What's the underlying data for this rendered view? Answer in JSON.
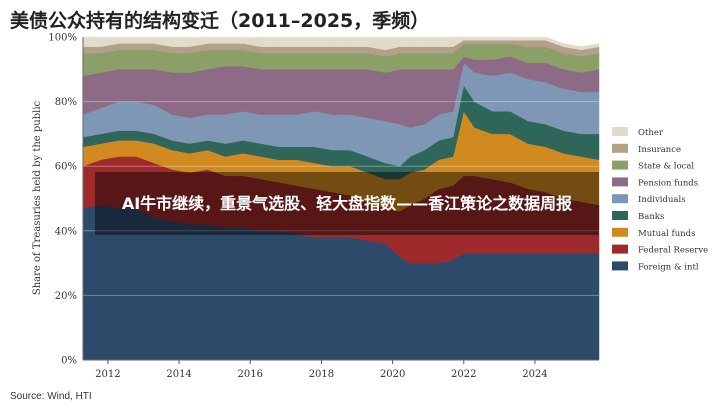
{
  "title": "美债公众持有的结构变迁（2011–2025，季频）",
  "source": "Source: Wind, HTI",
  "banner": "AI牛市继续，重景气选股、轻大盘指数——香江策论之数据周报",
  "chart_data": {
    "type": "area",
    "stacked": true,
    "ylabel": "Share of Treasuries held by the public",
    "ylim": [
      0,
      100
    ],
    "yticks": [
      "0%",
      "20%",
      "40%",
      "60%",
      "80%",
      "100%"
    ],
    "xlim": [
      2011.3,
      2025.8
    ],
    "xticks": [
      "2012",
      "2014",
      "2016",
      "2018",
      "2020",
      "2022",
      "2024"
    ],
    "legend_position": "right",
    "x": [
      2011.3,
      2011.8,
      2012.3,
      2012.8,
      2013.3,
      2013.8,
      2014.3,
      2014.8,
      2015.3,
      2015.8,
      2016.3,
      2016.8,
      2017.3,
      2017.8,
      2018.3,
      2018.8,
      2019.3,
      2019.8,
      2020.2,
      2020.5,
      2020.9,
      2021.3,
      2021.7,
      2022.0,
      2022.3,
      2022.8,
      2023.3,
      2023.8,
      2024.3,
      2024.8,
      2025.3,
      2025.8
    ],
    "series": [
      {
        "name": "Foreign & intl",
        "color": "#2e4a6b",
        "values": [
          47,
          48,
          47,
          47,
          44,
          43,
          42,
          42,
          41,
          41,
          40,
          40,
          39,
          38,
          38,
          38,
          37,
          36,
          32,
          30,
          30,
          30,
          31,
          33,
          33,
          33,
          33,
          33,
          33,
          33,
          33,
          33
        ]
      },
      {
        "name": "Federal Reserve",
        "color": "#9e2a2b",
        "values": [
          13,
          14,
          16,
          16,
          17,
          16,
          16,
          17,
          16,
          16,
          16,
          15,
          15,
          15,
          14,
          13,
          12,
          11,
          14,
          18,
          20,
          23,
          23,
          24,
          24,
          23,
          22,
          20,
          19,
          17,
          16,
          15
        ]
      },
      {
        "name": "Mutual funds",
        "color": "#d18a1f",
        "values": [
          6,
          5,
          5,
          5,
          6,
          6,
          6,
          6,
          6,
          7,
          7,
          7,
          8,
          8,
          8,
          9,
          9,
          9,
          10,
          10,
          9,
          9,
          9,
          20,
          15,
          14,
          15,
          14,
          14,
          14,
          14,
          14
        ]
      },
      {
        "name": "Banks",
        "color": "#2e6659",
        "values": [
          3,
          3,
          3,
          3,
          3,
          3,
          3,
          3,
          4,
          4,
          4,
          4,
          4,
          5,
          5,
          5,
          5,
          5,
          4,
          5,
          6,
          6,
          6,
          8,
          8,
          7,
          7,
          7,
          7,
          7,
          7,
          8
        ]
      },
      {
        "name": "Individuals",
        "color": "#7d97b5",
        "values": [
          7,
          8,
          9,
          9,
          9,
          8,
          8,
          8,
          9,
          9,
          9,
          10,
          10,
          11,
          11,
          11,
          12,
          13,
          13,
          9,
          8,
          8,
          8,
          7,
          9,
          11,
          12,
          13,
          13,
          13,
          13,
          13
        ]
      },
      {
        "name": "Pension funds",
        "color": "#8d6b86",
        "values": [
          12,
          11,
          10,
          10,
          11,
          13,
          14,
          14,
          15,
          14,
          14,
          14,
          14,
          13,
          14,
          14,
          15,
          15,
          17,
          18,
          17,
          14,
          13,
          2,
          4,
          5,
          5,
          5,
          6,
          6,
          6,
          7
        ]
      },
      {
        "name": "State & local",
        "color": "#8aa067",
        "values": [
          7,
          6,
          6,
          6,
          6,
          6,
          6,
          6,
          5,
          5,
          5,
          5,
          5,
          5,
          5,
          5,
          5,
          5,
          5,
          5,
          5,
          5,
          5,
          4,
          5,
          5,
          4,
          5,
          5,
          5,
          5,
          5
        ]
      },
      {
        "name": "Insurance",
        "color": "#b3a089",
        "values": [
          2,
          2,
          2,
          2,
          2,
          2,
          2,
          2,
          2,
          2,
          2,
          2,
          2,
          2,
          2,
          2,
          2,
          2,
          2,
          2,
          2,
          2,
          2,
          1,
          1,
          1,
          1,
          2,
          2,
          2,
          2,
          2
        ]
      },
      {
        "name": "Other",
        "color": "#e0dbcb",
        "values": [
          3,
          3,
          2,
          2,
          2,
          3,
          3,
          2,
          2,
          2,
          3,
          3,
          3,
          3,
          3,
          3,
          3,
          4,
          3,
          3,
          3,
          3,
          3,
          1,
          1,
          1,
          1,
          1,
          1,
          1,
          1,
          1
        ]
      }
    ]
  }
}
